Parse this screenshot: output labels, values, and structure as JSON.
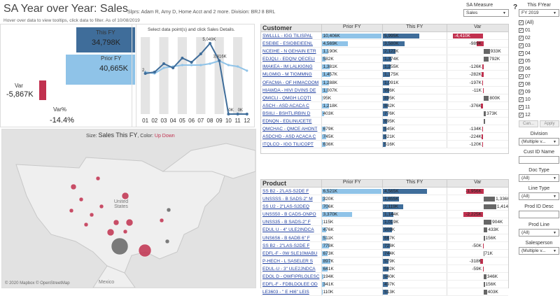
{
  "header": {
    "title": "SA Year over Year: Sales",
    "filters": "Slprs: Adam R, Amy D, Home Acct and 2 more. Division: BRJ 8 BRL",
    "hover_note": "Hover over data to view tooltips, click data to filter. As of  10/08/2019"
  },
  "measure": {
    "label": "SA Measure",
    "value": "Sales"
  },
  "help": "?",
  "kpi": {
    "this_fy_label": "This FY",
    "this_fy_value": "34,798K",
    "prior_fy_label": "Prior FY",
    "prior_fy_value": "40,665K",
    "var_label": "Var",
    "var_value": "-5,867K",
    "varpct_label": "Var%",
    "varpct_value": "-14.4%"
  },
  "monthly": {
    "subtitle": "Select data point(s) and click Sales Details.",
    "months": [
      "01",
      "02",
      "03",
      "04",
      "05",
      "06",
      "07",
      "08",
      "09",
      "10",
      "11",
      "12"
    ],
    "labels": [
      "2,",
      "5,049K",
      "3,816K",
      "0K",
      "0K"
    ]
  },
  "chart_data": {
    "type": "line",
    "categories": [
      "01",
      "02",
      "03",
      "04",
      "05",
      "06",
      "07",
      "08",
      "09",
      "10",
      "11",
      "12"
    ],
    "series": [
      {
        "name": "This FY",
        "values": [
          2.9,
          3.0,
          3.6,
          3.3,
          4.0,
          3.7,
          4.3,
          5.049,
          3.816,
          0,
          0,
          0
        ]
      },
      {
        "name": "Prior FY",
        "values": [
          3.0,
          2.9,
          3.3,
          3.4,
          3.5,
          3.5,
          3.5,
          3.6,
          3.8,
          3.5,
          3.4,
          3.1
        ]
      }
    ],
    "ylim": [
      0,
      5.5
    ],
    "grid": "alternating-columns"
  },
  "colors": {
    "this_fy": "#3f6d9a",
    "prior_fy": "#8fc3e8",
    "var_neg": "#c1314f",
    "var_pos": "#666666"
  },
  "map": {
    "size_label": "Size:",
    "size_measure": "Sales This FY",
    "color_label": ", Color:",
    "up": "Up",
    "down": "Down",
    "credits": "© 2020 Mapbox  © OpenStreetMap",
    "labels": {
      "us": "United States",
      "mx": "Mexico"
    },
    "bubbles": [
      [
        102,
        82,
        4,
        "r"
      ],
      [
        113,
        100,
        3,
        "r"
      ],
      [
        137,
        70,
        3,
        "r"
      ],
      [
        176,
        95,
        5,
        "r"
      ],
      [
        142,
        110,
        3,
        "r"
      ],
      [
        128,
        122,
        3,
        "r"
      ],
      [
        182,
        133,
        5,
        "r"
      ],
      [
        163,
        133,
        4,
        "r"
      ],
      [
        155,
        147,
        5,
        "r"
      ],
      [
        168,
        167,
        12,
        "g"
      ],
      [
        204,
        173,
        9,
        "r"
      ],
      [
        176,
        146,
        3,
        "r"
      ],
      [
        120,
        136,
        3,
        "r"
      ],
      [
        99,
        116,
        3,
        "r"
      ],
      [
        236,
        160,
        3,
        "g"
      ],
      [
        228,
        130,
        3,
        "r"
      ],
      [
        238,
        115,
        3,
        "g"
      ]
    ]
  },
  "customer": {
    "header": "Customer",
    "cols": [
      "Prior FY",
      "This FY",
      "Var"
    ],
    "rows": [
      [
        "SWLLLL - IGG TILISPAL",
        "10,406K",
        99,
        "5,995K",
        58,
        "-4,410K",
        -52
      ],
      [
        "ESEIBE - ESIDBEIEENL",
        "4,569K",
        44,
        "3,580K",
        34,
        "-989K",
        -12
      ],
      [
        "NCEIHE - N GEHAIN ETR",
        "1,190K",
        11,
        "2,123K",
        20,
        "933K",
        11
      ],
      [
        "EDJQLI - EDQN/ QECELI",
        "582K",
        6,
        "1,374K",
        13,
        "792K",
        9
      ],
      [
        "IMAKEA - IM LALKIGNG",
        "1,381K",
        13,
        "1,255K",
        12,
        "-126K",
        -1.5
      ],
      [
        "MLGMIG - M TIGMMNG",
        "1,457K",
        14,
        "1,175K",
        11,
        "-282K",
        -3.3
      ],
      [
        "OFACMA - OF HIMACOOM",
        "1,288K",
        12,
        "1,091K",
        10,
        "-197K",
        -2.3
      ],
      [
        "HIAWDA - HIVI DVINS DE",
        "1,007K",
        10,
        "996K",
        9.5,
        "-11K",
        -0.3
      ],
      [
        "QMICLI - QMGH LCQTI",
        "95K",
        1,
        "895K",
        8.6,
        "800K",
        9.4
      ],
      [
        "ASCH - ASD ACACA C",
        "1,218K",
        12,
        "842K",
        8,
        "-376K",
        -4.4
      ],
      [
        "BSIILI - BSHTLIRBIN D",
        "403K",
        4,
        "776K",
        7.4,
        "373K",
        4.4
      ],
      [
        "EDNQN - EDLINUCETE",
        "",
        0,
        "695K",
        6.6,
        "",
        3
      ],
      [
        "QMCHAC - QMCE AHONT",
        "679K",
        6.5,
        "545K",
        5.2,
        "-134K",
        -1.6
      ],
      [
        "ASDCHD - ASD ACACA C",
        "745K",
        7,
        "521K",
        5,
        "-224K",
        -2.6
      ],
      [
        "ITQLCO - IGG TILICOPT",
        "636K",
        6,
        "516K",
        4.9,
        "-120K",
        -1.4
      ]
    ]
  },
  "product": {
    "header": "Product",
    "cols": [
      "Prior FY",
      "This FY",
      "Var"
    ],
    "rows": [
      [
        "SS B2 - 2'LAS-S2DE F",
        "6,521K",
        99,
        "4,565K",
        70,
        "-1,956K",
        -30
      ],
      [
        "UNSSSS - B SADS-2\" M",
        "320K",
        5,
        "1,655K",
        25,
        "1,336K",
        20
      ],
      [
        "SS U2 - 2\"LAS-S2DEQ",
        "706K",
        11,
        "2,119K",
        32,
        "1,414K",
        22
      ],
      [
        "UNSS50 - B CADS-ONPO",
        "3,370K",
        51,
        "1,144K",
        17,
        "-2,225K",
        -34
      ],
      [
        "UNSS35 - B SADS-2\" F",
        "115K",
        2,
        "1,019K",
        16,
        "904K",
        14
      ],
      [
        "EDUL U - 4\" ULE2INDCA",
        "476K",
        7,
        "909K",
        14,
        "433K",
        7
      ],
      [
        "UNS6S6 - B 6ADB 6\" F",
        "511K",
        8,
        "667K",
        10,
        "156K",
        2.4
      ],
      [
        "SS B2 - 2\"LAS-S2DE F",
        "778K",
        12,
        "728K",
        11,
        "-50K",
        -0.8
      ],
      [
        "EDFL-F - 0W SLE10MABU",
        "673K",
        10,
        "744K",
        11,
        "71K",
        1.1
      ],
      [
        "P-HECH - L SASELER S",
        "897K",
        14,
        "579K",
        9,
        "-318K",
        -4.9
      ],
      [
        "EDUL-U - 3\" ULE2JNDCA",
        "641K",
        10,
        "582K",
        9,
        "-59K",
        -0.9
      ],
      [
        "EDOL D - OWFIPRLOLESC",
        "194K",
        3,
        "540K",
        8,
        "346K",
        5.3
      ],
      [
        "EDFL-F - FDBLDOLEE OD",
        "341K",
        5,
        "497K",
        7.6,
        "156K",
        2.4
      ],
      [
        "LE3603 - \" E HI6\" LEIS",
        "110K",
        1.7,
        "513K",
        7.8,
        "403K",
        6.2
      ]
    ]
  },
  "side": {
    "year_label": "This FYear",
    "year_value": "FY 2019",
    "months": [
      "(All)",
      "01",
      "02",
      "03",
      "04",
      "05",
      "06",
      "07",
      "08",
      "09",
      "10",
      "11",
      "12"
    ],
    "cancel": "Can...",
    "apply": "Apply",
    "division_label": "Division",
    "division_value": "(Multiple v...",
    "custid_label": "Cust ID Name",
    "doctype_label": "Doc Type",
    "doctype_value": "(All)",
    "linetype_label": "Line Type",
    "linetype_value": "(All)",
    "prodid_label": "Prod ID Desc",
    "prodline_label": "Prod Line",
    "prodline_value": "(All)",
    "salesperson_label": "Salesperson",
    "salesperson_value": "(Multiple v..."
  }
}
